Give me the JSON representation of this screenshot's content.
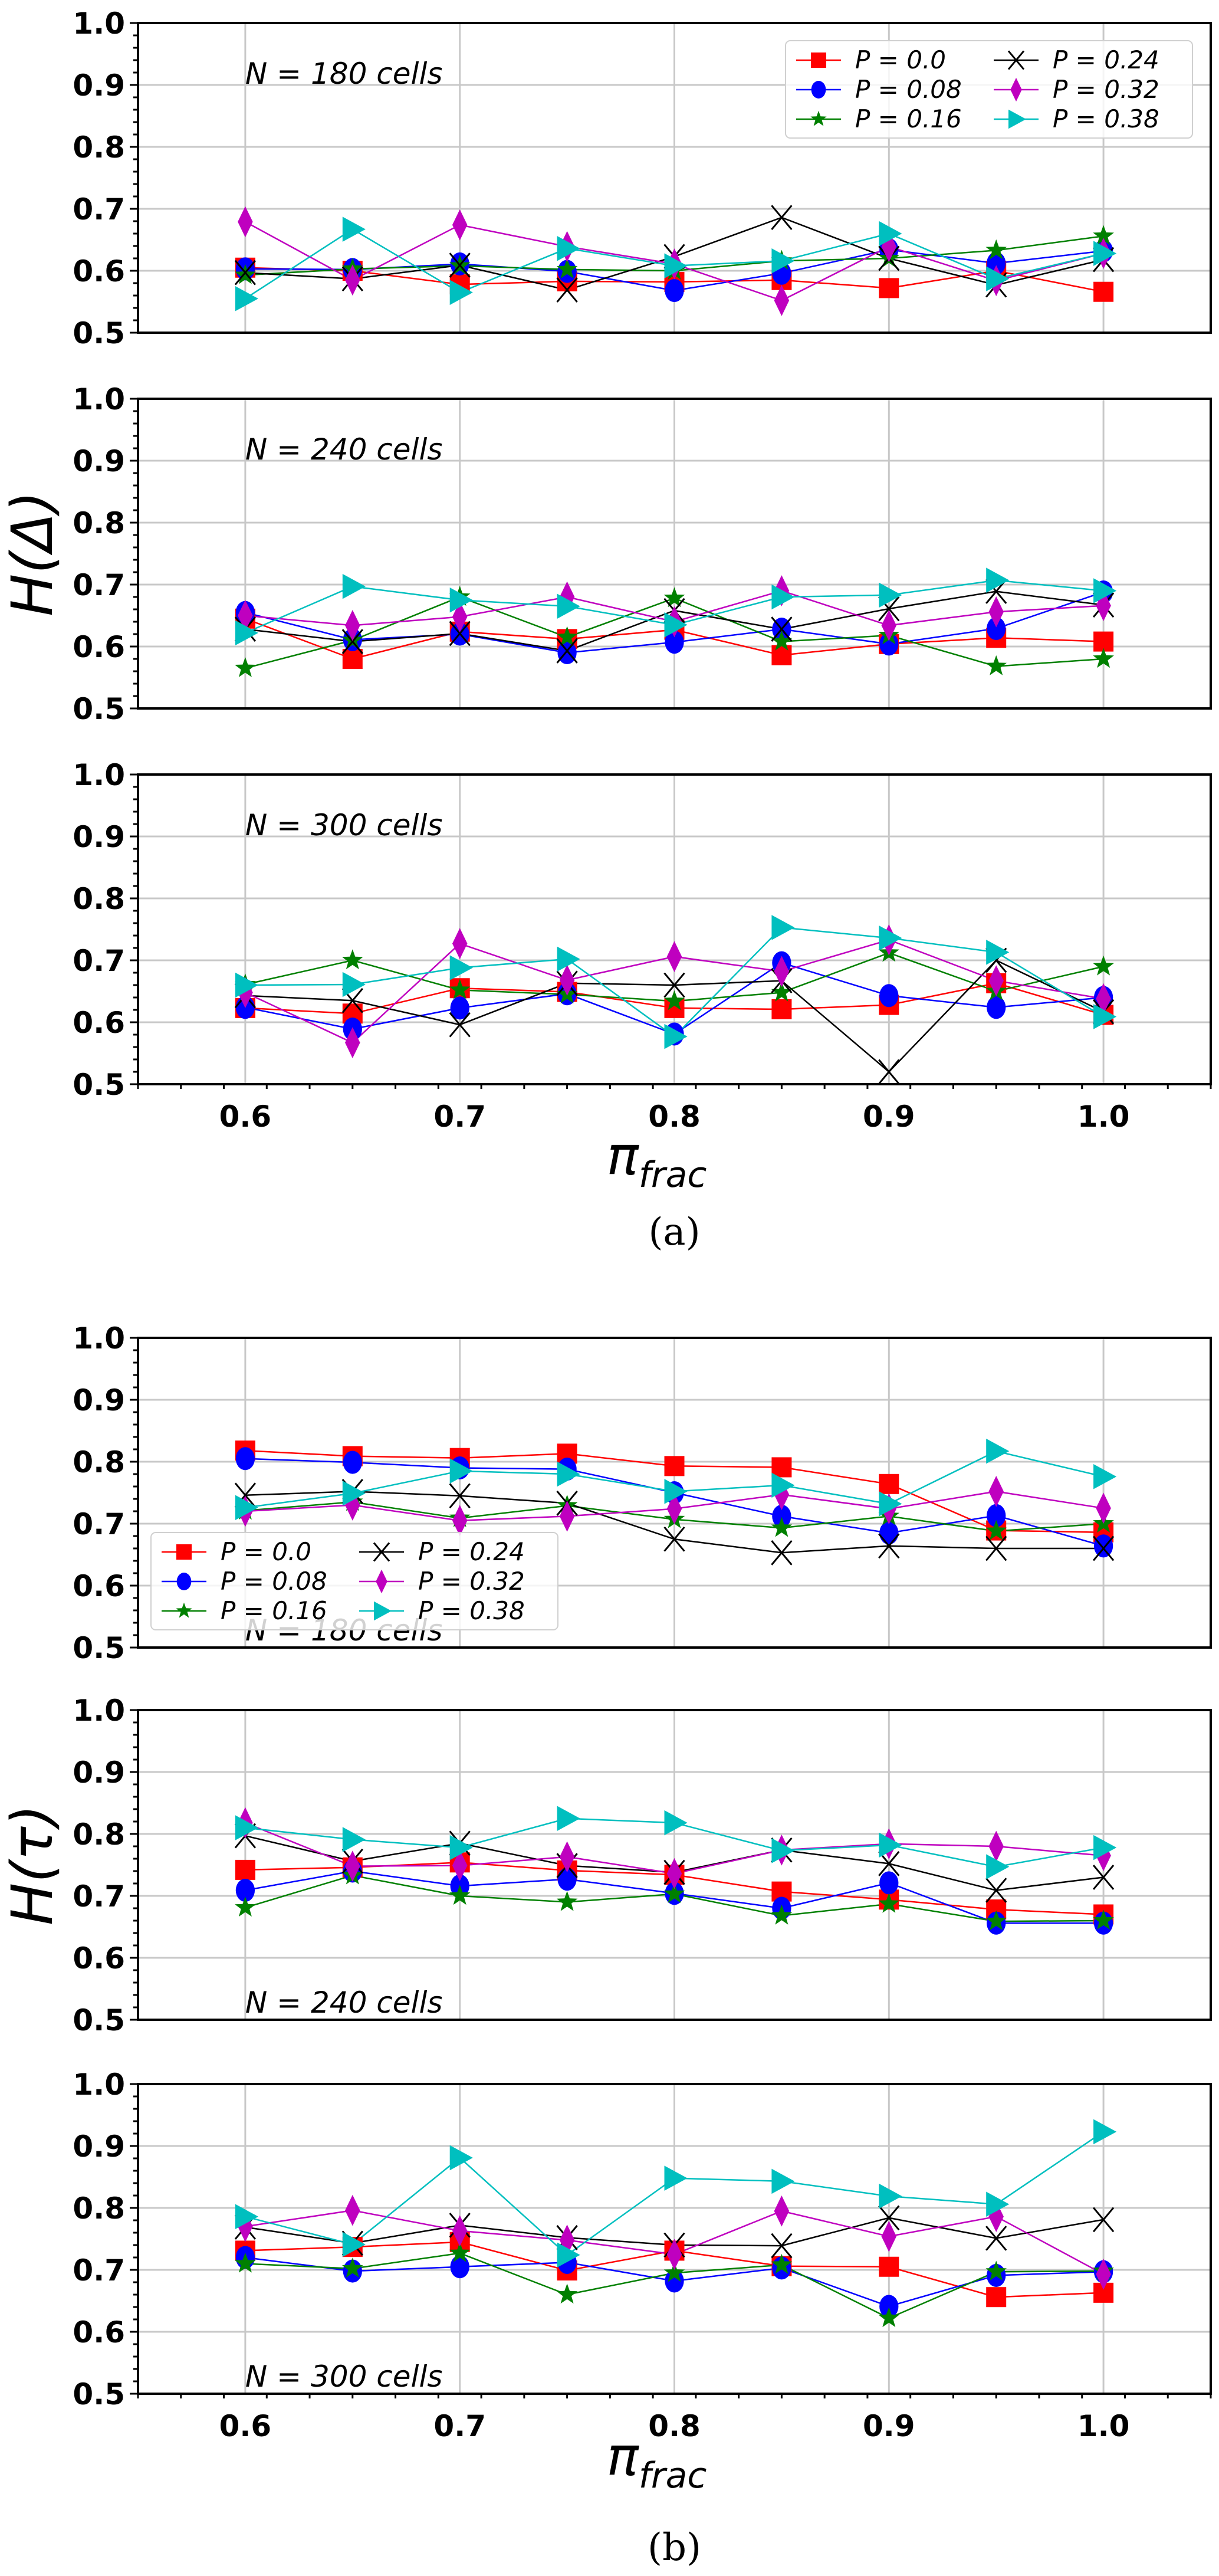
{
  "chart_data": {
    "type": "line",
    "x": [
      0.6,
      0.65,
      0.7,
      0.75,
      0.8,
      0.85,
      0.9,
      0.95,
      1.0
    ],
    "xlim": [
      0.55,
      1.05
    ],
    "ylim": [
      0.5,
      1.0
    ],
    "xticks": [
      "0.6",
      "0.7",
      "0.8",
      "0.9",
      "1.0"
    ],
    "yticks": [
      "0.5",
      "0.6",
      "0.7",
      "0.8",
      "0.9",
      "1.0"
    ],
    "grid": true,
    "xlabel": "π",
    "xlabel_sub": "frac",
    "legend": [
      {
        "label": "P = 0.0",
        "color": "#ff0000",
        "marker": "square"
      },
      {
        "label": "P = 0.08",
        "color": "#0000ff",
        "marker": "circle"
      },
      {
        "label": "P = 0.16",
        "color": "#008000",
        "marker": "star"
      },
      {
        "label": "P = 0.24",
        "color": "#000000",
        "marker": "x"
      },
      {
        "label": "P = 0.32",
        "color": "#bf00bf",
        "marker": "diamond"
      },
      {
        "label": "P = 0.38",
        "color": "#00bfbf",
        "marker": "triangle-right"
      }
    ],
    "figures": [
      {
        "caption": "(a)",
        "ylabel": "H(Δ)",
        "legend_location": "top-right of first panel",
        "panels": [
          {
            "annotation": "N = 180 cells",
            "annotation_position": "top",
            "series": [
              {
                "name": "P = 0.0",
                "values": [
                  0.605,
                  0.6,
                  0.578,
                  0.583,
                  0.582,
                  0.585,
                  0.572,
                  0.6,
                  0.566
                ]
              },
              {
                "name": "P = 0.08",
                "values": [
                  0.603,
                  0.602,
                  0.611,
                  0.599,
                  0.568,
                  0.596,
                  0.634,
                  0.612,
                  0.632
                ]
              },
              {
                "name": "P = 0.16",
                "values": [
                  0.593,
                  0.603,
                  0.608,
                  0.602,
                  0.6,
                  0.616,
                  0.62,
                  0.633,
                  0.656
                ]
              },
              {
                "name": "P = 0.24",
                "values": [
                  0.597,
                  0.587,
                  0.609,
                  0.569,
                  0.623,
                  0.686,
                  0.62,
                  0.577,
                  0.618
                ]
              },
              {
                "name": "P = 0.32",
                "values": [
                  0.679,
                  0.585,
                  0.674,
                  0.639,
                  0.611,
                  0.552,
                  0.639,
                  0.584,
                  0.628
                ]
              },
              {
                "name": "P = 0.38",
                "values": [
                  0.555,
                  0.667,
                  0.565,
                  0.636,
                  0.608,
                  0.616,
                  0.66,
                  0.587,
                  0.628
                ]
              }
            ]
          },
          {
            "annotation": "N = 240 cells",
            "annotation_position": "top",
            "series": [
              {
                "name": "P = 0.0",
                "values": [
                  0.645,
                  0.58,
                  0.624,
                  0.612,
                  0.627,
                  0.586,
                  0.604,
                  0.614,
                  0.608
                ]
              },
              {
                "name": "P = 0.08",
                "values": [
                  0.655,
                  0.611,
                  0.62,
                  0.59,
                  0.607,
                  0.628,
                  0.604,
                  0.629,
                  0.688
                ]
              },
              {
                "name": "P = 0.16",
                "values": [
                  0.565,
                  0.61,
                  0.68,
                  0.615,
                  0.678,
                  0.608,
                  0.618,
                  0.568,
                  0.58
                ]
              },
              {
                "name": "P = 0.24",
                "values": [
                  0.628,
                  0.608,
                  0.621,
                  0.593,
                  0.658,
                  0.628,
                  0.661,
                  0.689,
                  0.667
                ]
              },
              {
                "name": "P = 0.32",
                "values": [
                  0.65,
                  0.634,
                  0.648,
                  0.68,
                  0.64,
                  0.69,
                  0.634,
                  0.656,
                  0.666
                ]
              },
              {
                "name": "P = 0.38",
                "values": [
                  0.622,
                  0.697,
                  0.675,
                  0.665,
                  0.635,
                  0.68,
                  0.683,
                  0.707,
                  0.69
                ]
              }
            ]
          },
          {
            "annotation": "N = 300 cells",
            "annotation_position": "top",
            "series": [
              {
                "name": "P = 0.0",
                "values": [
                  0.623,
                  0.614,
                  0.655,
                  0.649,
                  0.623,
                  0.621,
                  0.628,
                  0.663,
                  0.612
                ]
              },
              {
                "name": "P = 0.08",
                "values": [
                  0.624,
                  0.589,
                  0.623,
                  0.646,
                  0.581,
                  0.696,
                  0.643,
                  0.624,
                  0.64
                ]
              },
              {
                "name": "P = 0.16",
                "values": [
                  0.661,
                  0.7,
                  0.652,
                  0.645,
                  0.634,
                  0.648,
                  0.712,
                  0.65,
                  0.69
                ]
              },
              {
                "name": "P = 0.24",
                "values": [
                  0.643,
                  0.635,
                  0.596,
                  0.663,
                  0.66,
                  0.667,
                  0.52,
                  0.7,
                  0.617
                ]
              },
              {
                "name": "P = 0.32",
                "values": [
                  0.648,
                  0.567,
                  0.727,
                  0.668,
                  0.706,
                  0.682,
                  0.733,
                  0.667,
                  0.638
                ]
              },
              {
                "name": "P = 0.38",
                "values": [
                  0.66,
                  0.661,
                  0.688,
                  0.702,
                  0.577,
                  0.753,
                  0.736,
                  0.713,
                  0.609
                ]
              }
            ]
          }
        ]
      },
      {
        "caption": "(b)",
        "ylabel": "H(τ)",
        "legend_location": "lower-left of first panel",
        "panels": [
          {
            "annotation": "N = 180 cells",
            "annotation_position": "bottom",
            "series": [
              {
                "name": "P = 0.0",
                "values": [
                  0.818,
                  0.809,
                  0.806,
                  0.813,
                  0.793,
                  0.791,
                  0.764,
                  0.689,
                  0.686
                ]
              },
              {
                "name": "P = 0.08",
                "values": [
                  0.805,
                  0.799,
                  0.79,
                  0.788,
                  0.75,
                  0.712,
                  0.685,
                  0.713,
                  0.664
                ]
              },
              {
                "name": "P = 0.16",
                "values": [
                  0.721,
                  0.735,
                  0.709,
                  0.729,
                  0.707,
                  0.693,
                  0.712,
                  0.688,
                  0.7
                ]
              },
              {
                "name": "P = 0.24",
                "values": [
                  0.746,
                  0.752,
                  0.745,
                  0.733,
                  0.675,
                  0.653,
                  0.664,
                  0.66,
                  0.66
                ]
              },
              {
                "name": "P = 0.32",
                "values": [
                  0.72,
                  0.73,
                  0.705,
                  0.712,
                  0.724,
                  0.747,
                  0.724,
                  0.752,
                  0.725
                ]
              },
              {
                "name": "P = 0.38",
                "values": [
                  0.726,
                  0.749,
                  0.785,
                  0.78,
                  0.752,
                  0.762,
                  0.732,
                  0.817,
                  0.776
                ]
              }
            ]
          },
          {
            "annotation": "N = 240 cells",
            "annotation_position": "bottom",
            "series": [
              {
                "name": "P = 0.0",
                "values": [
                  0.742,
                  0.746,
                  0.754,
                  0.741,
                  0.734,
                  0.707,
                  0.694,
                  0.678,
                  0.67
                ]
              },
              {
                "name": "P = 0.08",
                "values": [
                  0.709,
                  0.74,
                  0.716,
                  0.727,
                  0.704,
                  0.68,
                  0.721,
                  0.656,
                  0.656
                ]
              },
              {
                "name": "P = 0.16",
                "values": [
                  0.681,
                  0.733,
                  0.7,
                  0.69,
                  0.703,
                  0.668,
                  0.687,
                  0.659,
                  0.66
                ]
              },
              {
                "name": "P = 0.24",
                "values": [
                  0.797,
                  0.756,
                  0.785,
                  0.749,
                  0.738,
                  0.774,
                  0.752,
                  0.709,
                  0.73
                ]
              },
              {
                "name": "P = 0.32",
                "values": [
                  0.818,
                  0.748,
                  0.749,
                  0.763,
                  0.736,
                  0.774,
                  0.784,
                  0.78,
                  0.765
                ]
              },
              {
                "name": "P = 0.38",
                "values": [
                  0.81,
                  0.791,
                  0.778,
                  0.825,
                  0.818,
                  0.773,
                  0.782,
                  0.747,
                  0.778
                ]
              }
            ]
          },
          {
            "annotation": "N = 300 cells",
            "annotation_position": "bottom",
            "series": [
              {
                "name": "P = 0.0",
                "values": [
                  0.731,
                  0.737,
                  0.745,
                  0.699,
                  0.731,
                  0.706,
                  0.705,
                  0.656,
                  0.663
                ]
              },
              {
                "name": "P = 0.08",
                "values": [
                  0.72,
                  0.698,
                  0.705,
                  0.712,
                  0.682,
                  0.703,
                  0.641,
                  0.691,
                  0.697
                ]
              },
              {
                "name": "P = 0.16",
                "values": [
                  0.71,
                  0.702,
                  0.727,
                  0.66,
                  0.695,
                  0.708,
                  0.622,
                  0.697,
                  0.698
                ]
              },
              {
                "name": "P = 0.24",
                "values": [
                  0.769,
                  0.743,
                  0.772,
                  0.752,
                  0.74,
                  0.739,
                  0.784,
                  0.751,
                  0.781
                ]
              },
              {
                "name": "P = 0.32",
                "values": [
                  0.77,
                  0.796,
                  0.763,
                  0.748,
                  0.725,
                  0.795,
                  0.754,
                  0.786,
                  0.693
                ]
              },
              {
                "name": "P = 0.38",
                "values": [
                  0.786,
                  0.741,
                  0.881,
                  0.724,
                  0.848,
                  0.843,
                  0.819,
                  0.806,
                  0.923
                ]
              }
            ]
          }
        ]
      }
    ]
  }
}
